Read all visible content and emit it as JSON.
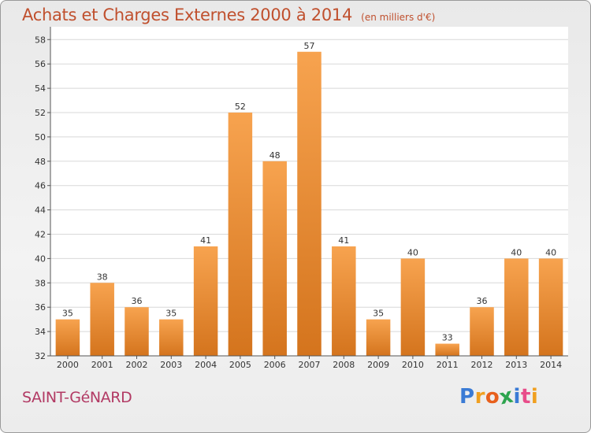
{
  "chart_data": {
    "type": "bar",
    "title": "Achats et Charges Externes 2000 à 2014",
    "subtitle": "(en milliers d'€)",
    "categories": [
      "2000",
      "2001",
      "2002",
      "2003",
      "2004",
      "2005",
      "2006",
      "2007",
      "2008",
      "2009",
      "2010",
      "2011",
      "2012",
      "2013",
      "2014"
    ],
    "values": [
      35,
      38,
      36,
      35,
      41,
      52,
      48,
      57,
      41,
      35,
      40,
      33,
      36,
      40,
      40
    ],
    "ylim": [
      32,
      59
    ],
    "yticks": [
      32,
      34,
      36,
      38,
      40,
      42,
      44,
      46,
      48,
      50,
      52,
      54,
      56,
      58
    ],
    "grid": true,
    "bar_color_top": "#f7a34f",
    "bar_color_bottom": "#d4741d"
  },
  "footer": {
    "place": "SAINT-GéNARD",
    "logo": "Proxiti",
    "logo_colors": [
      "#3a7bd5",
      "#f0a020",
      "#e8601c",
      "#2da44e",
      "#3a7bd5",
      "#e84d8a",
      "#f0a020"
    ]
  },
  "colors": {
    "title": "#c0502e",
    "place": "#b23a64"
  }
}
